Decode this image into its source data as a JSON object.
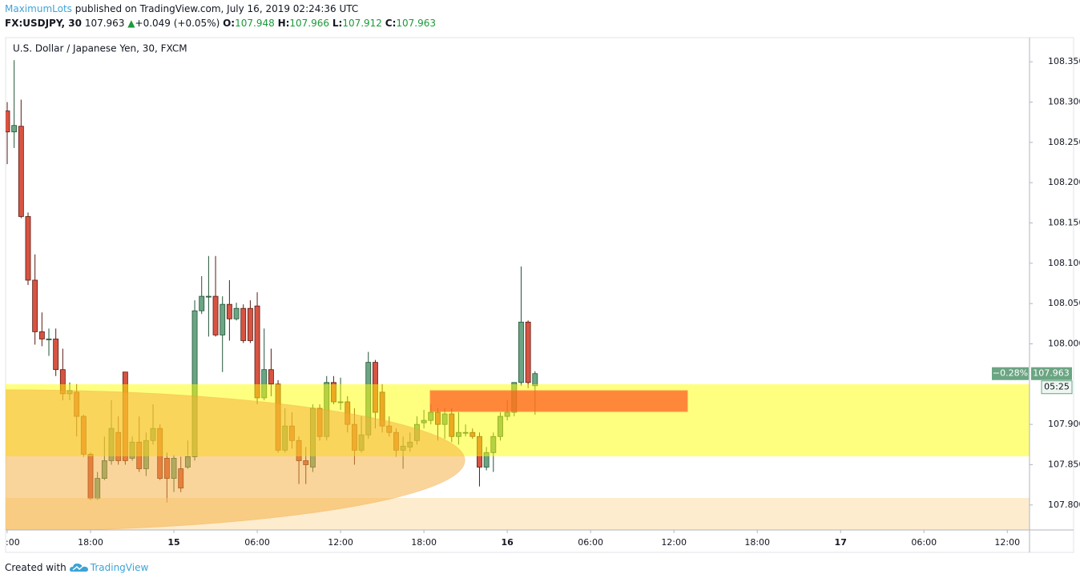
{
  "header": {
    "author": "MaximumLots",
    "published": "published on TradingView.com, July 16, 2019 02:24:36 UTC",
    "symbol": "FX:USDJPY, 30",
    "last": "107.963",
    "arrow": "▲",
    "change": "+0.049 (+0.05%)",
    "o_label": "O:",
    "o": "107.948",
    "h_label": "H:",
    "h": "107.966",
    "l_label": "L:",
    "l": "107.912",
    "c_label": "C:",
    "c": "107.963"
  },
  "chart_data": {
    "type": "candlestick",
    "title": "U.S. Dollar / Japanese Yen, 30, FXCM",
    "x": [
      0,
      1,
      2,
      3,
      4,
      5,
      6,
      7,
      8,
      9,
      10,
      11,
      12,
      13,
      14,
      15,
      16,
      17,
      18,
      19,
      20,
      21,
      22,
      23,
      24,
      25,
      26,
      27,
      28,
      29,
      30,
      31,
      32,
      33,
      34,
      35,
      36,
      37,
      38,
      39,
      40,
      41,
      42,
      43,
      44,
      45,
      46,
      47,
      48,
      49,
      50,
      51,
      52,
      53,
      54,
      55,
      56,
      57,
      58,
      59,
      60,
      61,
      62,
      63,
      64,
      65,
      66,
      67,
      68,
      69,
      70,
      71,
      72,
      73,
      74,
      75,
      76
    ],
    "open": [
      108.289,
      108.263,
      108.27,
      108.158,
      108.079,
      108.015,
      108.006,
      108.006,
      107.968,
      107.938,
      107.94,
      107.91,
      107.863,
      107.808,
      107.833,
      107.855,
      107.89,
      107.965,
      107.858,
      107.878,
      107.845,
      107.88,
      107.895,
      107.858,
      107.833,
      107.845,
      107.847,
      107.86,
      108.041,
      108.059,
      108.059,
      108.011,
      108.049,
      108.031,
      108.044,
      108.044,
      108.047,
      107.933,
      107.968,
      107.95,
      107.868,
      107.898,
      107.88,
      107.855,
      107.847,
      107.92,
      107.885,
      107.952,
      107.928,
      107.928,
      107.9,
      107.868,
      107.887,
      107.977,
      107.94,
      107.898,
      107.89,
      107.868,
      107.872,
      107.88,
      107.902,
      107.905,
      107.915,
      107.9,
      107.913,
      107.885,
      107.89,
      107.89,
      107.885,
      107.847,
      107.865,
      107.885,
      107.91,
      107.915,
      107.952,
      108.027,
      107.948
    ],
    "high": [
      108.3,
      108.352,
      108.303,
      108.163,
      108.111,
      108.039,
      108.019,
      108.019,
      107.994,
      107.952,
      107.95,
      107.912,
      107.865,
      107.841,
      107.885,
      107.93,
      107.91,
      107.965,
      107.885,
      107.91,
      107.89,
      107.925,
      107.9,
      107.865,
      107.862,
      107.86,
      107.88,
      108.054,
      108.084,
      108.109,
      108.109,
      108.059,
      108.079,
      108.051,
      108.049,
      108.054,
      108.064,
      108.019,
      107.994,
      107.955,
      107.92,
      107.915,
      107.885,
      107.872,
      107.925,
      107.925,
      107.96,
      107.96,
      107.958,
      107.935,
      107.92,
      107.91,
      107.99,
      107.98,
      107.95,
      107.91,
      107.895,
      107.885,
      107.89,
      107.91,
      107.918,
      107.925,
      107.92,
      107.92,
      107.92,
      107.915,
      107.9,
      107.895,
      107.89,
      107.872,
      107.89,
      107.915,
      107.93,
      107.952,
      108.096,
      108.029,
      107.966
    ],
    "low": [
      108.223,
      108.243,
      108.156,
      108.073,
      107.999,
      107.997,
      107.985,
      107.96,
      107.93,
      107.93,
      107.885,
      107.86,
      107.806,
      107.806,
      107.831,
      107.85,
      107.85,
      107.85,
      107.855,
      107.841,
      107.836,
      107.875,
      107.831,
      107.803,
      107.816,
      107.816,
      107.845,
      107.855,
      108.037,
      108.009,
      108.009,
      107.965,
      108.004,
      108.029,
      108.001,
      108.001,
      107.925,
      107.93,
      107.935,
      107.865,
      107.865,
      107.87,
      107.826,
      107.826,
      107.841,
      107.88,
      107.88,
      107.925,
      107.918,
      107.89,
      107.85,
      107.865,
      107.882,
      107.895,
      107.89,
      107.885,
      107.86,
      107.845,
      107.866,
      107.875,
      107.895,
      107.9,
      107.88,
      107.882,
      107.878,
      107.875,
      107.885,
      107.882,
      107.823,
      107.843,
      107.841,
      107.88,
      107.905,
      107.91,
      107.948,
      107.945,
      107.912
    ],
    "close": [
      108.263,
      108.271,
      108.158,
      108.079,
      108.015,
      108.006,
      108.006,
      107.968,
      107.938,
      107.942,
      107.91,
      107.863,
      107.808,
      107.833,
      107.855,
      107.895,
      107.855,
      107.855,
      107.878,
      107.845,
      107.88,
      107.895,
      107.833,
      107.833,
      107.858,
      107.821,
      107.86,
      108.041,
      108.059,
      108.059,
      108.011,
      108.049,
      108.031,
      108.044,
      108.004,
      108.004,
      107.933,
      107.968,
      107.95,
      107.868,
      107.898,
      107.88,
      107.855,
      107.85,
      107.92,
      107.885,
      107.952,
      107.928,
      107.928,
      107.9,
      107.868,
      107.887,
      107.977,
      107.915,
      107.898,
      107.89,
      107.868,
      107.873,
      107.878,
      107.9,
      107.905,
      107.915,
      107.9,
      107.913,
      107.885,
      107.89,
      107.89,
      107.885,
      107.847,
      107.865,
      107.885,
      107.91,
      107.915,
      107.952,
      108.027,
      107.952,
      107.963
    ],
    "up_color": "#6ba583",
    "down_color": "#d75442",
    "xlim": [
      -0.23,
      147.2
    ],
    "ylim": [
      107.769,
      108.38
    ],
    "xticks": [
      {
        "value": 0,
        "label": ":00"
      },
      {
        "value": 12,
        "label": "18:00"
      },
      {
        "value": 24,
        "label": "15"
      },
      {
        "value": 36,
        "label": "06:00"
      },
      {
        "value": 48,
        "label": "12:00"
      },
      {
        "value": 60,
        "label": "18:00"
      },
      {
        "value": 72,
        "label": "16"
      },
      {
        "value": 84,
        "label": "06:00"
      },
      {
        "value": 96,
        "label": "12:00"
      },
      {
        "value": 108,
        "label": "18:00"
      },
      {
        "value": 120,
        "label": "17"
      },
      {
        "value": 132,
        "label": "06:00"
      },
      {
        "value": 144,
        "label": "12:00"
      }
    ],
    "yticks": [
      {
        "value": 108.35,
        "label": "108.350"
      },
      {
        "value": 108.3,
        "label": "108.300"
      },
      {
        "value": 108.25,
        "label": "108.250"
      },
      {
        "value": 108.2,
        "label": "108.200"
      },
      {
        "value": 108.15,
        "label": "108.150"
      },
      {
        "value": 108.1,
        "label": "108.100"
      },
      {
        "value": 108.05,
        "label": "108.050"
      },
      {
        "value": 108.0,
        "label": "108.000"
      },
      {
        "value": 107.9,
        "label": "107.900"
      },
      {
        "value": 107.85,
        "label": "107.850"
      },
      {
        "value": 107.8,
        "label": "107.800"
      }
    ],
    "last_price": 107.963,
    "change_tag": "−0.28%",
    "countdown": "05:25"
  },
  "footer": {
    "text": "Created with",
    "brand": "TradingView"
  }
}
